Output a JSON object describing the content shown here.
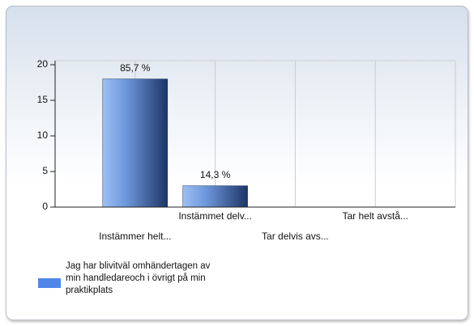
{
  "chart_data": {
    "type": "bar",
    "categories": [
      "Instämmer helt...",
      "Instämmet delv...",
      "Tar delvis avs...",
      "Tar helt avstå..."
    ],
    "series": [
      {
        "name": "Jag har blivitväl omhändertagen av min handledareoch i övrigt på min praktikplats",
        "color": "#4f86e8",
        "values": [
          18,
          3,
          0,
          0
        ]
      }
    ],
    "bar_labels": [
      "85,7 %",
      "14,3 %"
    ],
    "ylim": [
      0,
      20
    ],
    "yticks": [
      0,
      5,
      10,
      15,
      20
    ],
    "grid": true
  }
}
